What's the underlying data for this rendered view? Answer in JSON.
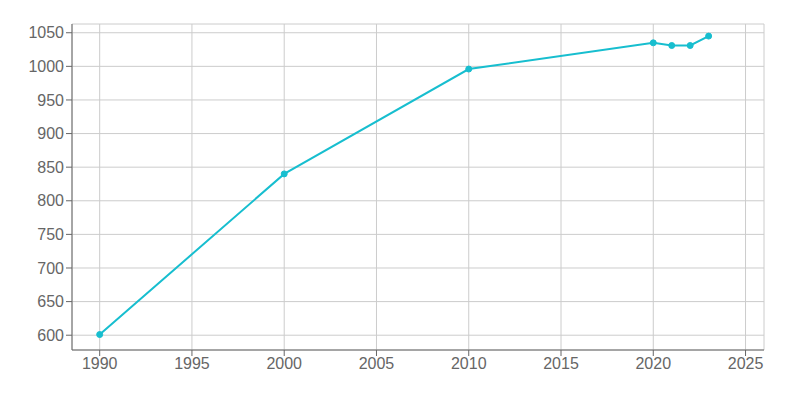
{
  "chart_data": {
    "type": "line",
    "x": [
      1990,
      2000,
      2010,
      2020,
      2021,
      2022,
      2023
    ],
    "values": [
      601,
      840,
      996,
      1035,
      1031,
      1031,
      1045
    ],
    "color": "#17becf",
    "marker": "circle",
    "xlim": [
      1988.5,
      2026
    ],
    "ylim": [
      578,
      1063
    ],
    "xticks": [
      1990,
      1995,
      2000,
      2005,
      2010,
      2015,
      2020,
      2025
    ],
    "yticks": [
      600,
      650,
      700,
      750,
      800,
      850,
      900,
      950,
      1000,
      1050
    ],
    "grid": true
  }
}
